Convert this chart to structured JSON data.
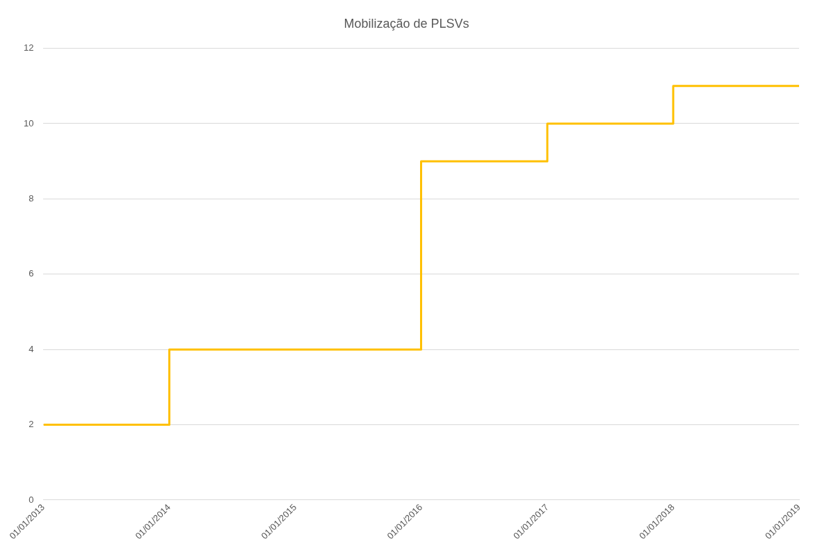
{
  "chart_data": {
    "type": "step",
    "title": "Mobilização de PLSVs",
    "x": [
      "2013-01-01",
      "2014-01-01",
      "2015-01-01",
      "2016-01-01",
      "2017-01-01",
      "2018-01-01",
      "2019-01-01"
    ],
    "series": [
      {
        "color": "#ffc000",
        "values": [
          2,
          4,
          4,
          9,
          10,
          11,
          11
        ]
      }
    ],
    "xlim": [
      "2013-01-01",
      "2019-01-01"
    ],
    "xticks": [
      {
        "value": "2013-01-01",
        "label": "01/01/2013"
      },
      {
        "value": "2014-01-01",
        "label": "01/01/2014"
      },
      {
        "value": "2015-01-01",
        "label": "01/01/2015"
      },
      {
        "value": "2016-01-01",
        "label": "01/01/2016"
      },
      {
        "value": "2017-01-01",
        "label": "01/01/2017"
      },
      {
        "value": "2018-01-01",
        "label": "01/01/2018"
      },
      {
        "value": "2019-01-01",
        "label": "01/01/2019"
      }
    ],
    "ylim": [
      0,
      12
    ],
    "yticks": [
      0,
      2,
      4,
      6,
      8,
      10,
      12
    ],
    "grid": "y",
    "legend": false
  }
}
